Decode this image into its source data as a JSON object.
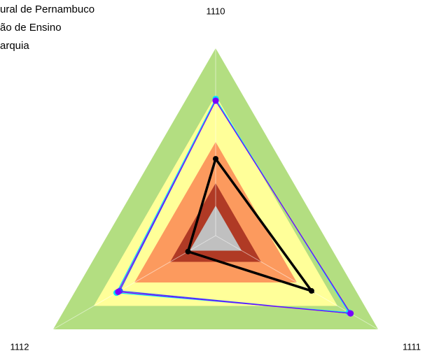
{
  "chart_data": {
    "type": "radar",
    "title_lines": [
      "ural de Pernambuco",
      "ão de Ensino",
      "arquia"
    ],
    "categories": [
      "1110",
      "1111",
      "1112"
    ],
    "ylim": [
      0,
      100
    ],
    "bands": [
      {
        "value": 100,
        "color": "#b3de81"
      },
      {
        "value": 75,
        "color": "#ffff99"
      },
      {
        "value": 50,
        "color": "#fc9a5e"
      },
      {
        "value": 28,
        "color": "#b03a25"
      },
      {
        "value": 16,
        "color": "#c0c0c0"
      }
    ],
    "series": [
      {
        "color": "#00e5ff",
        "values": [
          73,
          82,
          61
        ]
      },
      {
        "color": "#3050ff",
        "values": [
          72,
          83,
          59
        ]
      },
      {
        "color": "#7a00ff",
        "values": [
          72,
          83,
          60
        ]
      },
      {
        "color": "#000000",
        "values": [
          41,
          59,
          17
        ]
      }
    ]
  }
}
